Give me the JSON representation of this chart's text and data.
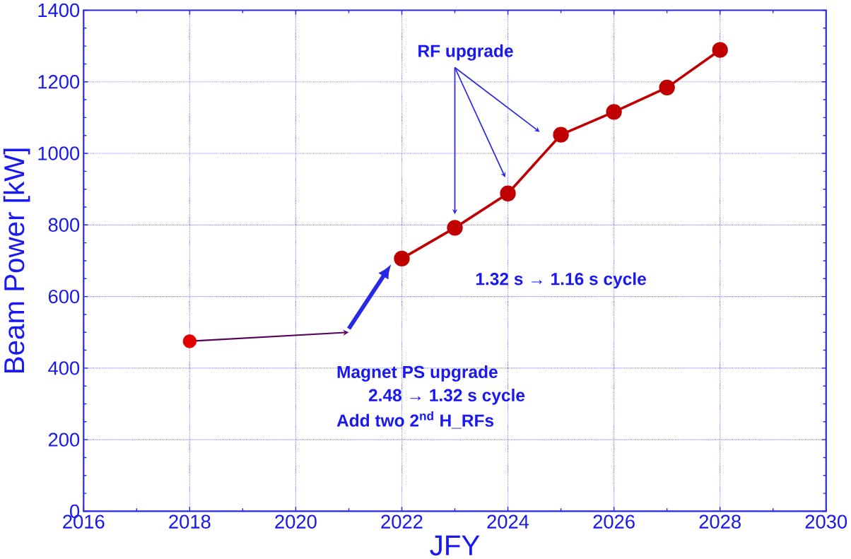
{
  "chart_data": {
    "type": "line",
    "xlabel": "JFY",
    "ylabel": "Beam Power [kW]",
    "series": [
      {
        "type": "scatter",
        "color": "#e00000",
        "x": [
          2018
        ],
        "values": [
          475
        ]
      },
      {
        "color": "#c00000",
        "x": [
          2022,
          2023,
          2024,
          2025,
          2026,
          2027,
          2028
        ],
        "values": [
          706,
          792,
          888,
          1052,
          1116,
          1184,
          1289
        ]
      }
    ],
    "marker": "circle",
    "xlim": [
      2016,
      2030
    ],
    "xticks": [
      2016,
      2018,
      2020,
      2022,
      2024,
      2026,
      2028,
      2030
    ],
    "ylim": [
      0,
      1400
    ],
    "yticks": [
      0,
      200,
      400,
      600,
      800,
      1000,
      1200,
      1400
    ],
    "grid": true,
    "annotations": [
      "RF upgrade",
      "1.32 s → 1.16 s cycle",
      "Magnet PS upgrade",
      "2.48 → 1.32 s cycle",
      "Add two 2$^{nd}$ H_RFs"
    ]
  }
}
